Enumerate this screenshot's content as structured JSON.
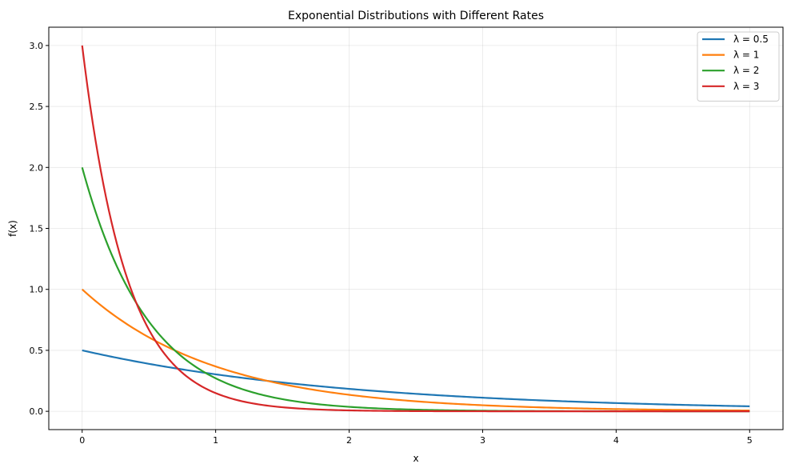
{
  "chart_data": {
    "type": "line",
    "title": "Exponential Distributions with Different Rates",
    "xlabel": "x",
    "ylabel": "f(x)",
    "xlim": [
      -0.25,
      5.25
    ],
    "ylim": [
      -0.15,
      3.15
    ],
    "x_ticks": [
      0,
      1,
      2,
      3,
      4,
      5
    ],
    "x_tick_labels": [
      "0",
      "1",
      "2",
      "3",
      "4",
      "5"
    ],
    "y_ticks": [
      0,
      0.5,
      1,
      1.5,
      2,
      2.5,
      3
    ],
    "y_tick_labels": [
      "0.0",
      "0.5",
      "1.0",
      "1.5",
      "2.0",
      "2.5",
      "3.0"
    ],
    "grid": true,
    "legend_position": "top-right",
    "x": [
      0,
      0.25,
      0.5,
      0.75,
      1,
      1.25,
      1.5,
      1.75,
      2,
      2.25,
      2.5,
      2.75,
      3,
      3.25,
      3.5,
      3.75,
      4,
      4.25,
      4.5,
      4.75,
      5
    ],
    "series": [
      {
        "name": "λ = 0.5",
        "color": "#1f77b4",
        "values": [
          0.5,
          0.441,
          0.389,
          0.344,
          0.303,
          0.268,
          0.236,
          0.208,
          0.184,
          0.162,
          0.143,
          0.126,
          0.112,
          0.098,
          0.087,
          0.077,
          0.068,
          0.06,
          0.053,
          0.047,
          0.041
        ]
      },
      {
        "name": "λ = 1",
        "color": "#ff7f0e",
        "values": [
          1.0,
          0.779,
          0.607,
          0.472,
          0.368,
          0.287,
          0.223,
          0.174,
          0.135,
          0.105,
          0.082,
          0.064,
          0.05,
          0.039,
          0.03,
          0.024,
          0.018,
          0.014,
          0.011,
          0.009,
          0.007
        ]
      },
      {
        "name": "λ = 2",
        "color": "#2ca02c",
        "values": [
          2.0,
          1.213,
          0.736,
          0.446,
          0.271,
          0.164,
          0.1,
          0.06,
          0.037,
          0.022,
          0.013,
          0.008,
          0.005,
          0.003,
          0.002,
          0.001,
          0.001,
          0.0,
          0.0,
          0.0,
          0.0
        ]
      },
      {
        "name": "λ = 3",
        "color": "#d62728",
        "values": [
          3.0,
          1.417,
          0.669,
          0.316,
          0.149,
          0.07,
          0.033,
          0.016,
          0.007,
          0.003,
          0.002,
          0.001,
          0.0,
          0.0,
          0.0,
          0.0,
          0.0,
          0.0,
          0.0,
          0.0,
          0.0
        ]
      }
    ]
  }
}
